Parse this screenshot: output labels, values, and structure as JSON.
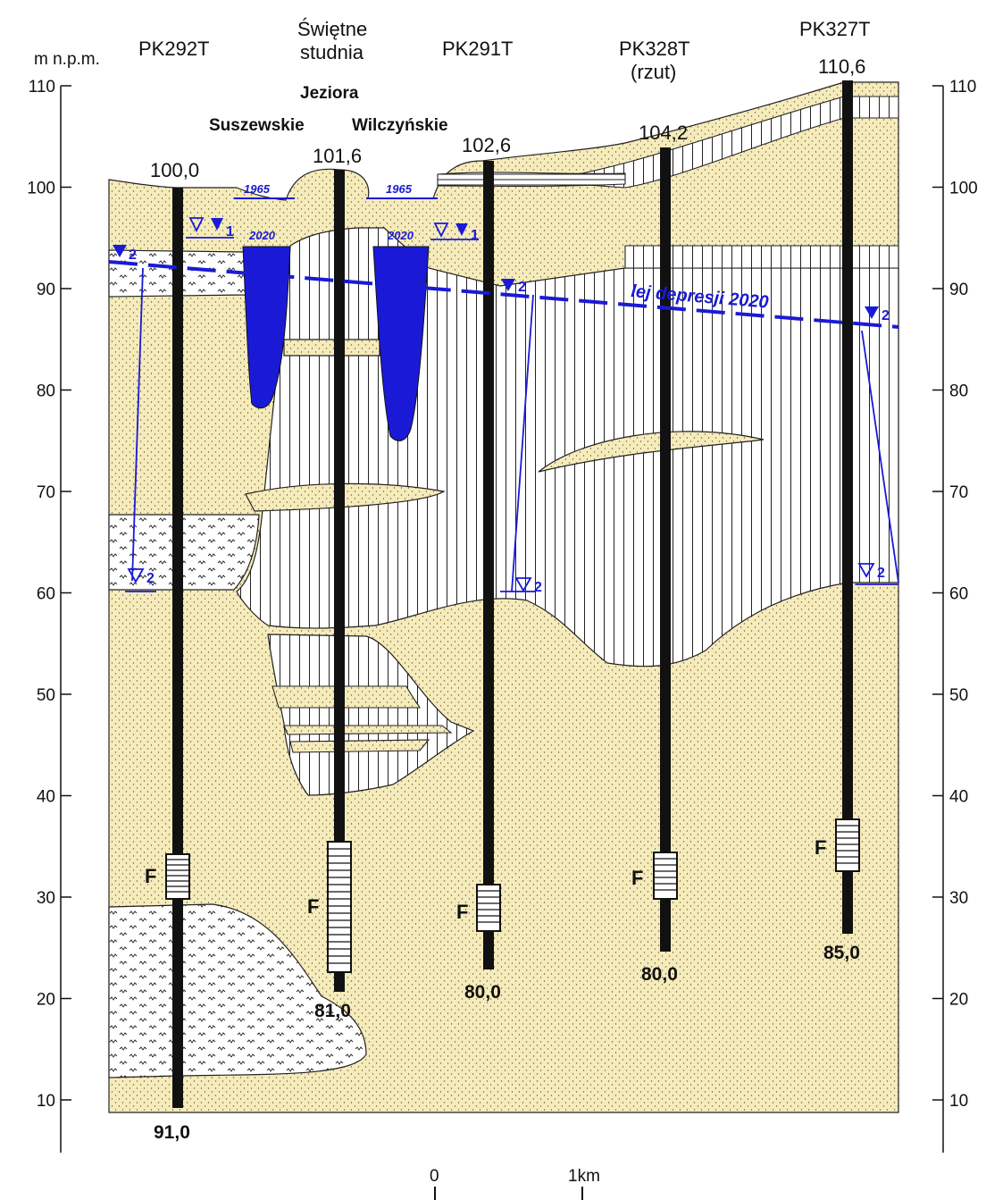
{
  "axis": {
    "unit_label": "m n.p.m.",
    "ticks": [
      "110",
      "100",
      "90",
      "80",
      "70",
      "60",
      "50",
      "40",
      "30",
      "20",
      "10"
    ]
  },
  "wells": [
    {
      "name": "PK292T",
      "top_elevation": "100,0",
      "depth": "91,0",
      "filter_label": "F"
    },
    {
      "name_line1": "Świętne",
      "name_line2": "studnia",
      "top_elevation": "101,6",
      "depth": "81,0",
      "filter_label": "F"
    },
    {
      "name": "PK291T",
      "top_elevation": "102,6",
      "depth": "80,0",
      "filter_label": "F"
    },
    {
      "name": "PK328T",
      "name_line2": "(rzut)",
      "top_elevation": "104,2",
      "depth": "80,0",
      "filter_label": "F"
    },
    {
      "name": "PK327T",
      "top_elevation": "110,6",
      "depth": "85,0",
      "filter_label": "F"
    }
  ],
  "lakes": {
    "line1": "Jeziora",
    "left_name": "Suszewskie",
    "right_name": "Wilczyńskie",
    "year_old": "1965",
    "year_new": "2020"
  },
  "water_levels": {
    "aquifer1": "1",
    "aquifer2": "2"
  },
  "depression_label": "lej depresji 2020",
  "scale": {
    "start": "0",
    "end": "1km"
  },
  "colors": {
    "sand": "#f6ebbb",
    "water": "#1a1ad6",
    "column": "#111111"
  }
}
